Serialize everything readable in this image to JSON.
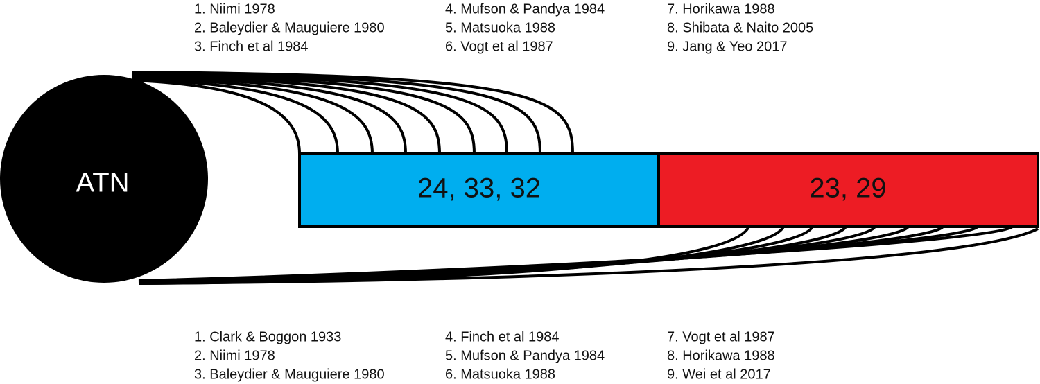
{
  "node": {
    "label": "ATN"
  },
  "boxes": [
    {
      "label": "24, 33, 32",
      "color": "#00aeef"
    },
    {
      "label": "23, 29",
      "color": "#ed1c24"
    }
  ],
  "top_references": [
    "1. Niimi 1978",
    "2. Baleydier & Mauguiere 1980",
    "3. Finch et al 1984",
    "4. Mufson & Pandya 1984",
    "5. Matsuoka 1988",
    "6. Vogt et al 1987",
    "7. Horikawa 1988",
    "8. Shibata & Naito 2005",
    "9. Jang & Yeo 2017"
  ],
  "bottom_references": [
    "1. Clark & Boggon 1933",
    "2. Niimi 1978",
    "3. Baleydier & Mauguiere 1980",
    "4. Finch et al 1984",
    "5. Mufson & Pandya 1984",
    "6. Matsuoka 1988",
    "7. Vogt et al 1987",
    "8. Horikawa 1988",
    "9. Wei et al 2017"
  ]
}
